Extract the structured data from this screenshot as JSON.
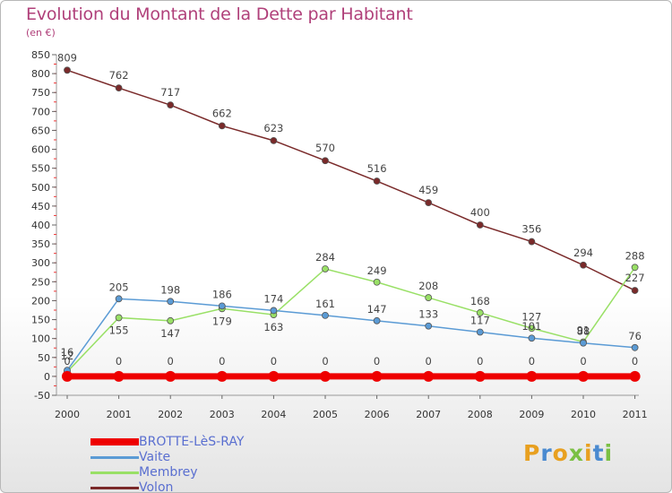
{
  "title": "Evolution du Montant de la Dette par Habitant",
  "subtitle": "(en €)",
  "logo": "Proxiti",
  "chart_data": {
    "type": "line",
    "x": [
      "2000",
      "2001",
      "2002",
      "2003",
      "2004",
      "2005",
      "2006",
      "2007",
      "2008",
      "2009",
      "2010",
      "2011"
    ],
    "ylim": [
      -50,
      850
    ],
    "yticks": [
      -50,
      0,
      50,
      100,
      150,
      200,
      250,
      300,
      350,
      400,
      450,
      500,
      550,
      600,
      650,
      700,
      750,
      800,
      850
    ],
    "grid": false,
    "legend_placement": "bottom-left",
    "series": [
      {
        "name": "BROTTE-LèS-RAY",
        "color": "#ee0000",
        "values": [
          0,
          0,
          0,
          0,
          0,
          0,
          0,
          0,
          0,
          0,
          0,
          0
        ],
        "labels": [
          "0",
          "0",
          "0",
          "0",
          "0",
          "0",
          "0",
          "0",
          "0",
          "0",
          "0",
          "0"
        ]
      },
      {
        "name": "Vaite",
        "color": "#5b9bd5",
        "values": [
          16,
          205,
          198,
          186,
          174,
          161,
          147,
          133,
          117,
          101,
          88,
          76
        ],
        "labels": [
          "16",
          "205",
          "198",
          "186",
          "174",
          "161",
          "147",
          "133",
          "117",
          "101",
          "88",
          "76"
        ]
      },
      {
        "name": "Membrey",
        "color": "#99e066",
        "values": [
          12,
          155,
          147,
          179,
          163,
          284,
          249,
          208,
          168,
          127,
          91,
          288
        ],
        "labels": [
          "12",
          "155",
          "147",
          "179",
          "163",
          "284",
          "249",
          "208",
          "168",
          "127",
          "91",
          "288"
        ]
      },
      {
        "name": "Volon",
        "color": "#7a2a2a",
        "values": [
          809,
          762,
          717,
          662,
          623,
          570,
          516,
          459,
          400,
          356,
          294,
          227
        ],
        "labels": [
          "809",
          "762",
          "717",
          "662",
          "623",
          "570",
          "516",
          "459",
          "400",
          "356",
          "294",
          "227"
        ]
      }
    ]
  }
}
